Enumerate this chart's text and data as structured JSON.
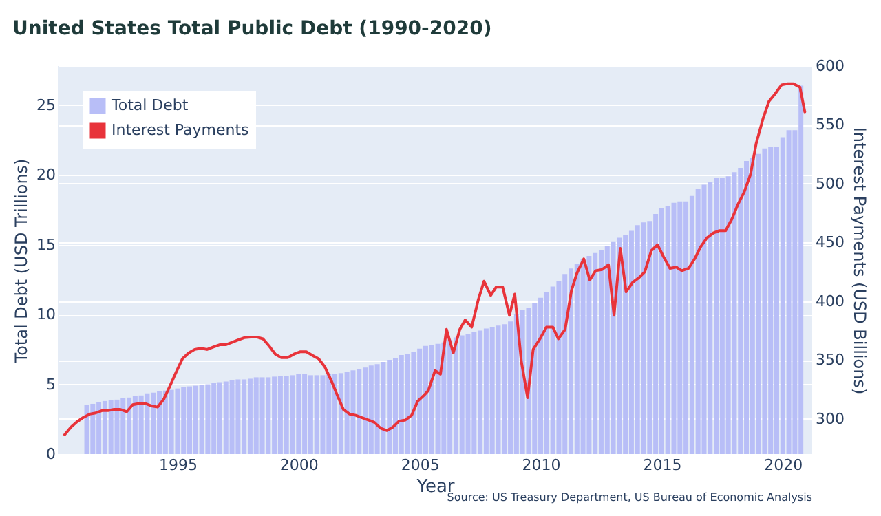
{
  "chart_data": {
    "type": "bar",
    "title": "United States Total Public Debt (1990-2020)",
    "xlabel": "Year",
    "ylabel": "Total Debt (USD Trillions)",
    "y2label": "Interest Payments (USD Billions)",
    "annotations": [
      "Source: US Treasury Department, US Bureau of Economic Analysis"
    ],
    "x": [
      1991.25,
      1991.5,
      1991.75,
      1992,
      1992.25,
      1992.5,
      1992.75,
      1993,
      1993.25,
      1993.5,
      1993.75,
      1994,
      1994.25,
      1994.5,
      1994.75,
      1995,
      1995.25,
      1995.5,
      1995.75,
      1996,
      1996.25,
      1996.5,
      1996.75,
      1997,
      1997.25,
      1997.5,
      1997.75,
      1998,
      1998.25,
      1998.5,
      1998.75,
      1999,
      1999.25,
      1999.5,
      1999.75,
      2000,
      2000.25,
      2000.5,
      2000.75,
      2001,
      2001.25,
      2001.5,
      2001.75,
      2002,
      2002.25,
      2002.5,
      2002.75,
      2003,
      2003.25,
      2003.5,
      2003.75,
      2004,
      2004.25,
      2004.5,
      2004.75,
      2005,
      2005.25,
      2005.5,
      2005.75,
      2006,
      2006.25,
      2006.5,
      2006.75,
      2007,
      2007.25,
      2007.5,
      2007.75,
      2008,
      2008.25,
      2008.5,
      2008.75,
      2009,
      2009.25,
      2009.5,
      2009.75,
      2010,
      2010.25,
      2010.5,
      2010.75,
      2011,
      2011.25,
      2011.5,
      2011.75,
      2012,
      2012.25,
      2012.5,
      2012.75,
      2013,
      2013.25,
      2013.5,
      2013.75,
      2014,
      2014.25,
      2014.5,
      2014.75,
      2015,
      2015.25,
      2015.5,
      2015.75,
      2016,
      2016.25,
      2016.5,
      2016.75,
      2017,
      2017.25,
      2017.5,
      2017.75,
      2018,
      2018.25,
      2018.5,
      2018.75,
      2019,
      2019.25,
      2019.5,
      2019.75,
      2020,
      2020.25,
      2020.5,
      2020.75
    ],
    "series": [
      {
        "name": "Total Debt",
        "color": "#b8bef7",
        "values": [
          3.5,
          3.6,
          3.7,
          3.8,
          3.85,
          3.9,
          4.0,
          4.05,
          4.15,
          4.2,
          4.35,
          4.4,
          4.5,
          4.55,
          4.6,
          4.7,
          4.8,
          4.85,
          4.9,
          4.95,
          5.0,
          5.1,
          5.15,
          5.2,
          5.3,
          5.35,
          5.35,
          5.4,
          5.5,
          5.5,
          5.5,
          5.55,
          5.6,
          5.6,
          5.65,
          5.75,
          5.75,
          5.65,
          5.65,
          5.65,
          5.75,
          5.75,
          5.8,
          5.9,
          6.0,
          6.1,
          6.2,
          6.35,
          6.45,
          6.6,
          6.75,
          6.9,
          7.1,
          7.2,
          7.35,
          7.55,
          7.75,
          7.8,
          7.9,
          8.0,
          8.2,
          8.35,
          8.5,
          8.6,
          8.75,
          8.85,
          9.0,
          9.1,
          9.2,
          9.3,
          9.5,
          10.0,
          10.3,
          10.5,
          10.8,
          11.2,
          11.6,
          12.0,
          12.4,
          12.9,
          13.3,
          13.6,
          14.0,
          14.2,
          14.4,
          14.6,
          14.9,
          15.2,
          15.5,
          15.7,
          16.0,
          16.4,
          16.6,
          16.7,
          17.2,
          17.6,
          17.8,
          18.0,
          18.1,
          18.1,
          18.5,
          19.0,
          19.3,
          19.5,
          19.8,
          19.8,
          19.9,
          20.2,
          20.5,
          21.0,
          21.2,
          21.5,
          21.9,
          22.0,
          22.0,
          22.7,
          23.2,
          23.2,
          26.4
        ]
      },
      {
        "name": "Interest Payments",
        "type": "line",
        "axis": "y2",
        "color": "#e8333a",
        "x": [
          1990.34,
          1990.6,
          1990.85,
          1991.1,
          1991.37,
          1991.62,
          1991.88,
          1992.13,
          1992.38,
          1992.64,
          1992.9,
          1993.15,
          1993.41,
          1993.67,
          1993.92,
          1994.18,
          1994.44,
          1994.69,
          1994.95,
          1995.2,
          1995.46,
          1995.71,
          1995.97,
          1996.22,
          1996.48,
          1996.74,
          1996.99,
          1997.25,
          1997.5,
          1997.76,
          1998.02,
          1998.27,
          1998.53,
          1998.78,
          1999.04,
          1999.29,
          1999.55,
          1999.81,
          2000.06,
          2000.32,
          2000.57,
          2000.83,
          2001.09,
          2001.34,
          2001.6,
          2001.85,
          2002.11,
          2002.36,
          2002.62,
          2002.88,
          2003.13,
          2003.39,
          2003.65,
          2003.9,
          2004.15,
          2004.41,
          2004.67,
          2004.92,
          2005.18,
          2005.36,
          2005.64,
          2005.86,
          2006.11,
          2006.39,
          2006.66,
          2006.88,
          2007.15,
          2007.42,
          2007.66,
          2007.94,
          2008.16,
          2008.43,
          2008.71,
          2008.93,
          2009.2,
          2009.46,
          2009.69,
          2009.97,
          2010.24,
          2010.5,
          2010.73,
          2011.01,
          2011.27,
          2011.5,
          2011.78,
          2012.03,
          2012.27,
          2012.54,
          2012.8,
          2013.03,
          2013.29,
          2013.53,
          2013.8,
          2014.06,
          2014.3,
          2014.57,
          2014.83,
          2015.07,
          2015.34,
          2015.6,
          2015.83,
          2016.11,
          2016.36,
          2016.6,
          2016.87,
          2017.13,
          2017.37,
          2017.64,
          2017.9,
          2018.14,
          2018.41,
          2018.67,
          2018.9,
          2019.18,
          2019.43,
          2019.67,
          2019.95,
          2020.2,
          2020.44,
          2020.71,
          2020.91
        ],
        "values": [
          286.5,
          293,
          297.5,
          301,
          304,
          305,
          307,
          307,
          308,
          308,
          306,
          312,
          313,
          313,
          311,
          310,
          317,
          328,
          340,
          351,
          356,
          359,
          360,
          359,
          361,
          363,
          363,
          365,
          367,
          369,
          369.5,
          369.5,
          368,
          362,
          355,
          352,
          352,
          355,
          357,
          357,
          354,
          351,
          344,
          333,
          320,
          308,
          304,
          303,
          301,
          299,
          297,
          292,
          290,
          293,
          298,
          299,
          303,
          315,
          320,
          324,
          341,
          338,
          376,
          356,
          376,
          384,
          378,
          401,
          417,
          405,
          412,
          412,
          388,
          406,
          349,
          318,
          359,
          368,
          378,
          378,
          368,
          376,
          409,
          424,
          436,
          418,
          426,
          427,
          431,
          388,
          445,
          408,
          416,
          420,
          425,
          443,
          448,
          438,
          428,
          429,
          426,
          428,
          436,
          446,
          454,
          458,
          460,
          460,
          470,
          482,
          493,
          508,
          534,
          555,
          570,
          576,
          584,
          585,
          585,
          582,
          561
        ]
      }
    ],
    "xlim": [
      1990.34,
      2020.93
    ],
    "xticks": [
      1995,
      2000,
      2005,
      2010,
      2015,
      2020
    ],
    "ylim": [
      0,
      27.8
    ],
    "yticks": [
      0,
      5,
      10,
      15,
      20,
      25
    ],
    "y2lim": [
      270,
      600
    ],
    "y2ticks": [
      300,
      350,
      400,
      450,
      500,
      550,
      600
    ],
    "grid": "y",
    "legend": "top left"
  }
}
